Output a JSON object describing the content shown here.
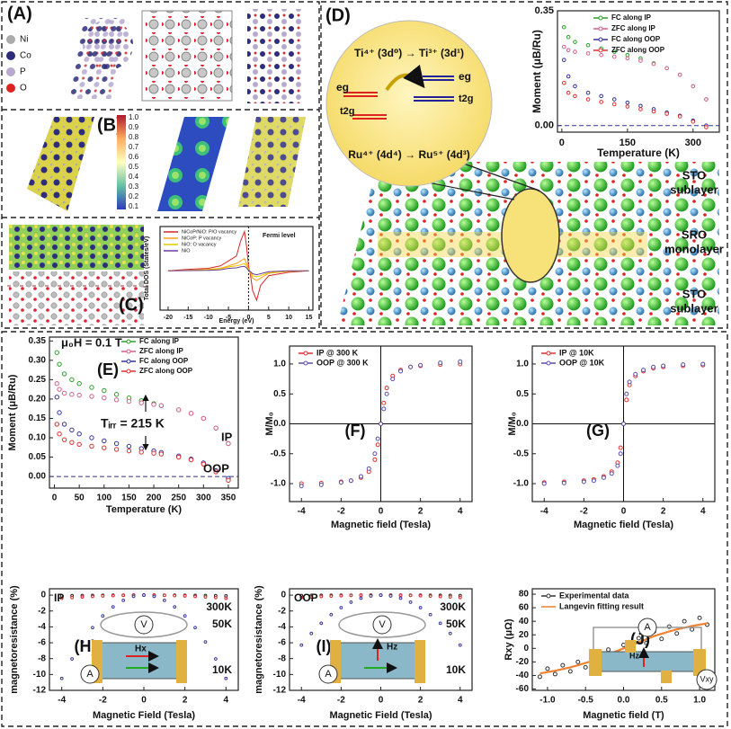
{
  "labels": {
    "panels": [
      "(A)",
      "(B)",
      "(C)",
      "(D)"
    ],
    "atoms": [
      "Ni",
      "Co",
      "P",
      "O"
    ],
    "colorbar": [
      "1.0",
      "0.9",
      "0.8",
      "0.7",
      "0.6",
      "0.5",
      "0.4",
      "0.3",
      "0.2",
      "0.1"
    ],
    "ti": "Ti⁴⁺ (3d⁰) → Ti³⁺ (3d¹)",
    "ru": "Ru⁴⁺ (4d⁴) → Ru⁵⁺ (4d³)",
    "levels": [
      "eg",
      "t2g",
      "eg",
      "t2g"
    ],
    "layers": [
      "STO",
      "sublayer",
      "SRO",
      "monolayer",
      "STO",
      "sublayer"
    ],
    "device_h": [
      "V",
      "A",
      "Hx"
    ],
    "device_i": [
      "V",
      "A",
      "Hz"
    ],
    "device_j": [
      "A",
      "Hz",
      "Vxy"
    ]
  },
  "chart_data": [
    {
      "type": "line",
      "xlabel": "Energy (eV)",
      "ylabel": "Total DOS (States/eV)",
      "x": [
        -20,
        -15,
        -10,
        -7,
        -5,
        -3,
        -2,
        -1,
        -0.5,
        0,
        0.5,
        1,
        2,
        3,
        5,
        10,
        15
      ],
      "xlim": [
        -22,
        16
      ],
      "xticks": [
        -20,
        -15,
        -10,
        -5,
        0,
        5,
        10,
        15
      ],
      "ylim": [
        -8,
        9
      ],
      "vline": 0,
      "annotations": [
        "Fermi level"
      ],
      "series": [
        {
          "name": "NiCoP/NiO: P/O vacancy",
          "color": "#d62728",
          "style": "line",
          "values": [
            0,
            0.3,
            0.5,
            1,
            2,
            3,
            6,
            8,
            5,
            1,
            -1,
            -4,
            -6,
            -3,
            -1,
            -0.3,
            0
          ]
        },
        {
          "name": "NiCoP: P vacancy",
          "color": "#ff9f1c",
          "style": "line",
          "values": [
            0,
            0.1,
            0.3,
            0.5,
            1,
            1.5,
            2,
            2.5,
            1.5,
            0.5,
            -0.5,
            -1.5,
            -2,
            -1.5,
            -0.5,
            -0.1,
            0
          ]
        },
        {
          "name": "NiO: O vacancy",
          "color": "#e8c800",
          "style": "line",
          "values": [
            0,
            0.1,
            0.2,
            0.4,
            0.8,
            1,
            1.2,
            1.5,
            1,
            0.3,
            -0.3,
            -1,
            -1.2,
            -1,
            -0.4,
            -0.1,
            0
          ]
        },
        {
          "name": "NiO",
          "color": "#6a3d9a",
          "style": "line",
          "values": [
            0,
            0.05,
            0.1,
            0.2,
            0.5,
            0.6,
            0.8,
            0.9,
            0.6,
            0.1,
            -0.2,
            -0.6,
            -0.8,
            -0.6,
            -0.2,
            0,
            0
          ]
        }
      ]
    },
    {
      "type": "scatter",
      "xlabel": "Temperature (K)",
      "ylabel": "Moment (μB/Ru)",
      "x": [
        5,
        15,
        30,
        60,
        90,
        120,
        150,
        180,
        210,
        240,
        270,
        300,
        330
      ],
      "xlim": [
        -10,
        360
      ],
      "xticks": [
        0,
        150,
        300
      ],
      "ylim": [
        -0.02,
        0.35
      ],
      "yticks": [
        {
          "value": 0,
          "label": "0.00"
        },
        {
          "value": 0.35,
          "label": "0.35"
        }
      ],
      "hline": 0,
      "series": [
        {
          "name": "FC  along IP",
          "color": "#2ca02c",
          "style": "markers",
          "values": [
            0.3,
            0.27,
            0.255,
            0.245,
            0.235,
            0.225,
            0.215,
            0.205,
            0.19,
            0.175,
            0.155,
            0.12,
            0.08
          ]
        },
        {
          "name": "ZFC along IP",
          "color": "#d65f8a",
          "style": "markers",
          "values": [
            0.24,
            0.23,
            0.225,
            0.22,
            0.215,
            0.21,
            0.205,
            0.198,
            0.188,
            0.175,
            0.155,
            0.12,
            0.08
          ]
        },
        {
          "name": "FC  along OOP",
          "color": "#33339a",
          "style": "markers",
          "values": [
            0.2,
            0.15,
            0.12,
            0.1,
            0.09,
            0.08,
            0.07,
            0.06,
            0.05,
            0.04,
            0.03,
            0.015,
            0
          ]
        },
        {
          "name": "ZFC along OOP",
          "color": "#e03030",
          "style": "markers",
          "values": [
            0.13,
            0.1,
            0.09,
            0.08,
            0.072,
            0.065,
            0.058,
            0.05,
            0.043,
            0.036,
            0.028,
            0.012,
            -0.005
          ]
        }
      ]
    },
    {
      "type": "scatter",
      "panel_label": "(E)",
      "xlabel": "Temperature (K)",
      "ylabel": "Moment (μB/Ru)",
      "x": [
        5,
        10,
        20,
        35,
        50,
        75,
        100,
        125,
        150,
        175,
        200,
        215,
        250,
        275,
        300,
        325,
        350
      ],
      "xlim": [
        -10,
        370
      ],
      "xticks": [
        0,
        50,
        100,
        150,
        200,
        250,
        300,
        350
      ],
      "ylim": [
        -0.03,
        0.36
      ],
      "yticks": [
        {
          "value": 0,
          "label": "0.00"
        },
        {
          "value": 0.05,
          "label": "0.05"
        },
        {
          "value": 0.1,
          "label": "0.10"
        },
        {
          "value": 0.15,
          "label": "0.15"
        },
        {
          "value": 0.2,
          "label": "0.20"
        },
        {
          "value": 0.25,
          "label": "0.25"
        },
        {
          "value": 0.3,
          "label": "0.30"
        },
        {
          "value": 0.35,
          "label": "0.35"
        }
      ],
      "hline": 0,
      "annotations": [
        "μ₀H = 0.1 T",
        "Tᵢᵣᵣ = 215 K",
        "IP",
        "OOP"
      ],
      "series": [
        {
          "name": "FC along IP",
          "color": "#2ca02c",
          "style": "markers",
          "values": [
            0.32,
            0.29,
            0.265,
            0.25,
            0.24,
            0.23,
            0.222,
            0.212,
            0.203,
            0.196,
            0.188,
            0.183,
            0.172,
            0.163,
            0.15,
            0.125,
            0.085
          ]
        },
        {
          "name": "ZFC along IP",
          "color": "#d65f8a",
          "style": "markers",
          "values": [
            0.24,
            0.225,
            0.215,
            0.212,
            0.21,
            0.207,
            0.203,
            0.198,
            0.194,
            0.19,
            0.186,
            0.183,
            0.172,
            0.163,
            0.15,
            0.125,
            0.085
          ]
        },
        {
          "name": "FC along OOP",
          "color": "#33339a",
          "style": "markers",
          "values": [
            0.205,
            0.165,
            0.135,
            0.12,
            0.11,
            0.1,
            0.092,
            0.085,
            0.078,
            0.072,
            0.066,
            0.062,
            0.053,
            0.045,
            0.035,
            0.015,
            -0.005
          ]
        },
        {
          "name": "ZFC along OOP",
          "color": "#e03030",
          "style": "markers",
          "values": [
            0.135,
            0.11,
            0.095,
            0.088,
            0.083,
            0.078,
            0.074,
            0.07,
            0.066,
            0.063,
            0.06,
            0.058,
            0.05,
            0.043,
            0.032,
            0.012,
            -0.01
          ]
        }
      ]
    },
    {
      "type": "scatter",
      "panel_label": "(F)",
      "xlabel": "Magnetic field (Tesla)",
      "ylabel": "M/M₀",
      "x": [
        -4,
        -3,
        -2,
        -1.5,
        -1,
        -0.6,
        -0.3,
        -0.15,
        0,
        0.15,
        0.3,
        0.6,
        1,
        1.5,
        2,
        3,
        4
      ],
      "xlim": [
        -4.6,
        4.6
      ],
      "xticks": [
        -4,
        -2,
        0,
        2,
        4
      ],
      "ylim": [
        -1.3,
        1.3
      ],
      "yticks": [
        {
          "value": -1,
          "label": "-1.0"
        },
        {
          "value": -0.5,
          "label": "-0.5"
        },
        {
          "value": 0,
          "label": "0.0"
        },
        {
          "value": 0.5,
          "label": "0.5"
        },
        {
          "value": 1,
          "label": "1.0"
        }
      ],
      "hline": 0,
      "vline": 0,
      "series": [
        {
          "name": "IP @ 300 K",
          "color": "#e03030",
          "style": "markers",
          "values": [
            -1.0,
            -0.99,
            -0.97,
            -0.95,
            -0.9,
            -0.8,
            -0.6,
            -0.35,
            0,
            0.35,
            0.6,
            0.8,
            0.9,
            0.95,
            0.97,
            0.99,
            1.0
          ]
        },
        {
          "name": "OOP @ 300 K",
          "color": "#5b4ea8",
          "style": "markers",
          "values": [
            -1.04,
            -1.02,
            -0.98,
            -0.95,
            -0.88,
            -0.75,
            -0.5,
            -0.25,
            0,
            0.25,
            0.5,
            0.75,
            0.88,
            0.95,
            0.98,
            1.02,
            1.04
          ]
        }
      ]
    },
    {
      "type": "scatter",
      "panel_label": "(G)",
      "xlabel": "Magnetic field (Tesla)",
      "ylabel": "M/M₀",
      "x": [
        -4,
        -3,
        -2,
        -1.5,
        -1,
        -0.6,
        -0.3,
        -0.15,
        0,
        0.15,
        0.3,
        0.6,
        1,
        1.5,
        2,
        3,
        4
      ],
      "xlim": [
        -4.6,
        4.6
      ],
      "xticks": [
        -4,
        -2,
        0,
        2,
        4
      ],
      "ylim": [
        -1.3,
        1.3
      ],
      "yticks": [
        {
          "value": -1,
          "label": "-1.0"
        },
        {
          "value": -0.5,
          "label": "-0.5"
        },
        {
          "value": 0,
          "label": "0.0"
        },
        {
          "value": 0.5,
          "label": "0.5"
        },
        {
          "value": 1,
          "label": "1.0"
        }
      ],
      "hline": 0,
      "vline": 0,
      "series": [
        {
          "name": "IP @ 10K",
          "color": "#e03030",
          "style": "markers",
          "values": [
            -0.98,
            -0.97,
            -0.95,
            -0.93,
            -0.88,
            -0.8,
            -0.65,
            -0.4,
            0,
            0.4,
            0.65,
            0.8,
            0.88,
            0.93,
            0.95,
            0.97,
            0.98
          ]
        },
        {
          "name": "OOP @ 10K",
          "color": "#5b4ea8",
          "style": "markers",
          "values": [
            -1.0,
            -0.99,
            -0.97,
            -0.95,
            -0.9,
            -0.83,
            -0.7,
            -0.5,
            0,
            0.5,
            0.7,
            0.83,
            0.9,
            0.95,
            0.97,
            0.99,
            1.0
          ]
        }
      ]
    },
    {
      "type": "scatter",
      "panel_label": "(H)",
      "xlabel": "Magnetic Field (Tesla)",
      "ylabel": "magnetoresistance (%)",
      "x": [
        -4,
        -3.5,
        -3,
        -2.5,
        -2,
        -1.5,
        -1,
        -0.5,
        0,
        0.5,
        1,
        1.5,
        2,
        2.5,
        3,
        3.5,
        4
      ],
      "xlim": [
        -4.6,
        4.6
      ],
      "xticks": [
        -4,
        -2,
        0,
        2,
        4
      ],
      "ylim": [
        -12,
        0.8
      ],
      "yticks": [
        -12,
        -10,
        -8,
        -6,
        -4,
        -2,
        0
      ],
      "annotations": [
        "IP",
        "300K",
        "50K",
        "10K"
      ],
      "series": [
        {
          "name": "300K",
          "color": "#222222",
          "style": "markers",
          "values": [
            -0.1,
            -0.07,
            -0.05,
            -0.04,
            -0.02,
            -0.01,
            -0.01,
            0,
            0,
            0,
            -0.01,
            -0.01,
            -0.02,
            -0.04,
            -0.05,
            -0.07,
            -0.1
          ]
        },
        {
          "name": "50K",
          "color": "#d62728",
          "style": "markers",
          "values": [
            -0.4,
            -0.31,
            -0.23,
            -0.16,
            -0.1,
            -0.06,
            -0.03,
            -0.01,
            0,
            -0.01,
            -0.03,
            -0.06,
            -0.1,
            -0.16,
            -0.23,
            -0.31,
            -0.4
          ]
        },
        {
          "name": "10K",
          "color": "#3a3aa0",
          "style": "markers",
          "values": [
            -10.5,
            -8.04,
            -5.9,
            -4.1,
            -2.62,
            -1.48,
            -0.66,
            -0.16,
            0,
            -0.16,
            -0.66,
            -1.48,
            -2.62,
            -4.1,
            -5.9,
            -8.04,
            -10.5
          ]
        }
      ]
    },
    {
      "type": "scatter",
      "panel_label": "(I)",
      "xlabel": "Magnetic Field (Tesla)",
      "ylabel": "magnetoresistance (%)",
      "x": [
        -4,
        -3.5,
        -3,
        -2.5,
        -2,
        -1.5,
        -1,
        -0.5,
        0,
        0.5,
        1,
        1.5,
        2,
        2.5,
        3,
        3.5,
        4
      ],
      "xlim": [
        -4.6,
        4.6
      ],
      "xticks": [
        -4,
        -2,
        0,
        2,
        4
      ],
      "ylim": [
        -12,
        0.8
      ],
      "yticks": [
        -12,
        -10,
        -8,
        -6,
        -4,
        -2,
        0
      ],
      "annotations": [
        "OOP",
        "300K",
        "50K",
        "10K"
      ],
      "series": [
        {
          "name": "300K",
          "color": "#222222",
          "style": "markers",
          "values": [
            -0.05,
            -0.04,
            -0.03,
            -0.02,
            -0.01,
            -0.01,
            0,
            0,
            0,
            0,
            0,
            -0.01,
            -0.01,
            -0.02,
            -0.03,
            -0.04,
            -0.05
          ]
        },
        {
          "name": "50K",
          "color": "#d62728",
          "style": "markers",
          "values": [
            -0.3,
            -0.23,
            -0.17,
            -0.12,
            -0.08,
            -0.04,
            -0.02,
            -0.01,
            0,
            -0.01,
            -0.02,
            -0.04,
            -0.08,
            -0.12,
            -0.17,
            -0.23,
            -0.3
          ]
        },
        {
          "name": "10K",
          "color": "#3a3aa0",
          "style": "markers",
          "values": [
            -6.3,
            -4.83,
            -3.55,
            -2.46,
            -1.58,
            -0.89,
            -0.39,
            -0.1,
            0,
            -0.1,
            -0.39,
            -0.89,
            -1.58,
            -2.46,
            -3.55,
            -4.83,
            -6.3
          ]
        }
      ]
    },
    {
      "type": "scatter",
      "panel_label": "(J)",
      "xlabel": "Magnetic field (T)",
      "ylabel": "Rxy (μΩ)",
      "x": [
        -1.1,
        -1.0,
        -0.9,
        -0.8,
        -0.7,
        -0.6,
        -0.5,
        -0.4,
        -0.3,
        -0.2,
        -0.1,
        0,
        0.1,
        0.2,
        0.3,
        0.4,
        0.5,
        0.6,
        0.7,
        0.8,
        0.9,
        1.0,
        1.1
      ],
      "xlim": [
        -1.2,
        1.2
      ],
      "xticks": [
        {
          "value": -1,
          "label": "-1.0"
        },
        {
          "value": -0.5,
          "label": "-0.5"
        },
        {
          "value": 0,
          "label": "0.0"
        },
        {
          "value": 0.5,
          "label": "0.5"
        },
        {
          "value": 1,
          "label": "1.0"
        }
      ],
      "ylim": [
        -62,
        88
      ],
      "yticks": [
        -60,
        -40,
        -20,
        0,
        20,
        40,
        60,
        80
      ],
      "series": [
        {
          "name": "Experimental data",
          "color": "#333333",
          "style": "markers",
          "values": [
            -42,
            -30,
            -38,
            -25,
            -34,
            -20,
            -28,
            -10,
            -20,
            -2,
            -10,
            5,
            -2,
            15,
            8,
            25,
            14,
            32,
            22,
            40,
            28,
            45,
            35
          ]
        },
        {
          "name": "Langevin fitting result",
          "color": "#f08030",
          "style": "line",
          "values": [
            -37,
            -35,
            -33,
            -30.5,
            -28,
            -25,
            -21.5,
            -18,
            -13.5,
            -9,
            -4.5,
            0,
            4.5,
            9,
            13.5,
            18,
            21.5,
            25,
            28,
            30.5,
            33,
            35,
            37
          ]
        }
      ]
    }
  ]
}
